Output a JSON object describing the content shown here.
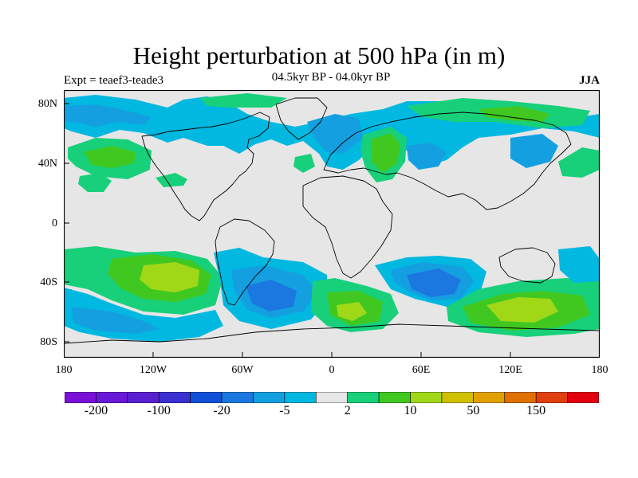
{
  "title": "Height perturbation at 500 hPa (in m)",
  "left_string": "Expt = teaef3-teade3",
  "center_string": "04.5kyr BP - 04.0kyr BP",
  "right_string": "JJA",
  "y_ticks": [
    "80N",
    "40N",
    "0",
    "40S",
    "80S"
  ],
  "x_ticks": [
    "180",
    "120W",
    "60W",
    "0",
    "60E",
    "120E",
    "180"
  ],
  "colorbar": {
    "colors": [
      "#7a10d8",
      "#6a18d8",
      "#5a20d0",
      "#3a30d0",
      "#1050d8",
      "#1a78e0",
      "#14a0e0",
      "#00b8e0",
      "#e6e6e6",
      "#18d07a",
      "#40c820",
      "#a0d818",
      "#d0c000",
      "#e0a000",
      "#e07000",
      "#e04010",
      "#e00010"
    ],
    "labels": [
      {
        "text": "-200",
        "boundary": 1
      },
      {
        "text": "-100",
        "boundary": 3
      },
      {
        "text": "-20",
        "boundary": 5
      },
      {
        "text": "-5",
        "boundary": 7
      },
      {
        "text": "2",
        "boundary": 9
      },
      {
        "text": "10",
        "boundary": 11
      },
      {
        "text": "50",
        "boundary": 13
      },
      {
        "text": "150",
        "boundary": 15
      }
    ]
  },
  "map": {
    "background": "#e6e6e6",
    "colors": {
      "lightblue": "#00b8e0",
      "midblue": "#14a0e0",
      "darkblue": "#1a78e0",
      "teal": "#18d07a",
      "green": "#40c820",
      "yellowgreen": "#a0d818"
    }
  }
}
